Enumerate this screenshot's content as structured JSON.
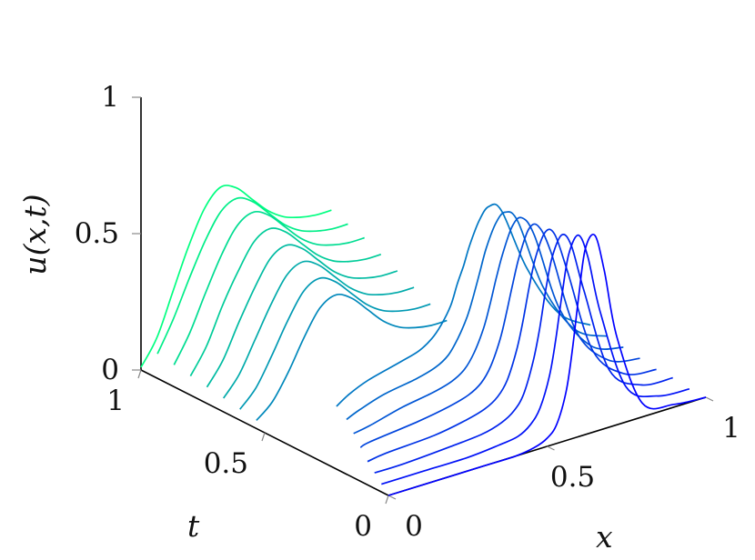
{
  "chart_data": {
    "type": "line",
    "projection": "3d",
    "xlabel": "x",
    "ylabel": "t",
    "zlabel": "u(x,t)",
    "xlim": [
      0,
      1
    ],
    "ylim": [
      0,
      1
    ],
    "zlim": [
      0,
      1
    ],
    "x_ticks": [
      "0",
      "0.5",
      "1"
    ],
    "y_ticks": [
      "0",
      "0.5",
      "1"
    ],
    "z_ticks": [
      "0",
      "0.5",
      "1"
    ],
    "grid": false,
    "colormap": "winter",
    "color_low": "#0000ff",
    "color_high": "#00ff80",
    "series": [
      {
        "t": 0.0,
        "x": [
          0,
          0.15,
          0.3,
          0.4,
          0.46,
          0.5,
          0.53,
          0.56,
          0.58,
          0.6,
          0.62,
          0.65,
          0.68,
          0.72,
          0.8,
          0.9,
          1.0
        ],
        "u": [
          0,
          0,
          0,
          0,
          0.01,
          0.03,
          0.07,
          0.18,
          0.33,
          0.52,
          0.68,
          0.72,
          0.58,
          0.32,
          0.05,
          0.01,
          0
        ]
      },
      {
        "t": 0.0667,
        "x": [
          0.03,
          0.15,
          0.3,
          0.4,
          0.46,
          0.5,
          0.53,
          0.56,
          0.58,
          0.6,
          0.62,
          0.65,
          0.68,
          0.72,
          0.8,
          0.9,
          1.0
        ],
        "u": [
          0,
          0,
          0,
          0.01,
          0.02,
          0.05,
          0.1,
          0.21,
          0.34,
          0.5,
          0.63,
          0.69,
          0.6,
          0.38,
          0.08,
          0.01,
          0
        ]
      },
      {
        "t": 0.1333,
        "x": [
          0.06,
          0.15,
          0.3,
          0.4,
          0.46,
          0.5,
          0.53,
          0.56,
          0.58,
          0.6,
          0.62,
          0.65,
          0.68,
          0.72,
          0.8,
          0.9,
          1.0
        ],
        "u": [
          0,
          0,
          0.01,
          0.02,
          0.04,
          0.07,
          0.12,
          0.23,
          0.34,
          0.48,
          0.59,
          0.66,
          0.61,
          0.43,
          0.11,
          0.02,
          0.01
        ]
      },
      {
        "t": 0.2,
        "x": [
          0.09,
          0.15,
          0.3,
          0.4,
          0.46,
          0.5,
          0.53,
          0.56,
          0.58,
          0.6,
          0.62,
          0.65,
          0.68,
          0.72,
          0.8,
          0.9,
          1.0
        ],
        "u": [
          0,
          0.01,
          0.02,
          0.04,
          0.06,
          0.09,
          0.14,
          0.24,
          0.34,
          0.46,
          0.56,
          0.64,
          0.62,
          0.47,
          0.15,
          0.03,
          0.01
        ]
      },
      {
        "t": 0.2667,
        "x": [
          0.12,
          0.15,
          0.3,
          0.4,
          0.46,
          0.5,
          0.53,
          0.56,
          0.58,
          0.6,
          0.62,
          0.65,
          0.68,
          0.72,
          0.8,
          0.9,
          1.0
        ],
        "u": [
          0.01,
          0.02,
          0.04,
          0.06,
          0.08,
          0.11,
          0.16,
          0.25,
          0.34,
          0.44,
          0.53,
          0.62,
          0.62,
          0.51,
          0.19,
          0.05,
          0.02
        ]
      },
      {
        "t": 0.3333,
        "x": [
          0.15,
          0.2,
          0.3,
          0.4,
          0.46,
          0.5,
          0.53,
          0.56,
          0.58,
          0.6,
          0.62,
          0.65,
          0.68,
          0.72,
          0.8,
          0.9,
          1.0
        ],
        "u": [
          0.02,
          0.03,
          0.06,
          0.08,
          0.1,
          0.13,
          0.18,
          0.26,
          0.34,
          0.43,
          0.51,
          0.6,
          0.62,
          0.54,
          0.24,
          0.07,
          0.03
        ]
      },
      {
        "t": 0.4,
        "x": [
          0.18,
          0.22,
          0.3,
          0.4,
          0.46,
          0.5,
          0.53,
          0.56,
          0.58,
          0.6,
          0.62,
          0.65,
          0.68,
          0.72,
          0.8,
          0.9,
          1.0
        ],
        "u": [
          0.03,
          0.05,
          0.08,
          0.1,
          0.12,
          0.15,
          0.2,
          0.27,
          0.34,
          0.42,
          0.5,
          0.58,
          0.61,
          0.56,
          0.29,
          0.1,
          0.04
        ]
      },
      {
        "t": 0.4667,
        "x": [
          0.2,
          0.24,
          0.3,
          0.4,
          0.46,
          0.5,
          0.53,
          0.56,
          0.58,
          0.6,
          0.62,
          0.65,
          0.68,
          0.72,
          0.8,
          0.9,
          1.0
        ],
        "u": [
          0.04,
          0.07,
          0.1,
          0.13,
          0.15,
          0.18,
          0.22,
          0.28,
          0.35,
          0.41,
          0.48,
          0.56,
          0.6,
          0.57,
          0.33,
          0.13,
          0.05
        ]
      },
      {
        "t": 0.5333,
        "x": [
          0.0,
          0.05,
          0.1,
          0.15,
          0.2,
          0.25,
          0.3,
          0.35,
          0.4,
          0.45,
          0.5,
          0.55,
          0.6
        ],
        "u": [
          0.03,
          0.08,
          0.17,
          0.28,
          0.37,
          0.4,
          0.37,
          0.31,
          0.25,
          0.21,
          0.19,
          0.18,
          0.18
        ]
      },
      {
        "t": 0.6,
        "x": [
          0.0,
          0.05,
          0.1,
          0.15,
          0.2,
          0.25,
          0.3,
          0.35,
          0.4,
          0.45,
          0.5,
          0.55,
          0.6
        ],
        "u": [
          0.04,
          0.1,
          0.2,
          0.31,
          0.4,
          0.43,
          0.4,
          0.34,
          0.28,
          0.24,
          0.22,
          0.21,
          0.21
        ]
      },
      {
        "t": 0.6667,
        "x": [
          0.0,
          0.05,
          0.1,
          0.15,
          0.2,
          0.25,
          0.3,
          0.35,
          0.4,
          0.45,
          0.5,
          0.55,
          0.6
        ],
        "u": [
          0.05,
          0.12,
          0.23,
          0.34,
          0.43,
          0.46,
          0.43,
          0.37,
          0.31,
          0.27,
          0.25,
          0.24,
          0.24
        ]
      },
      {
        "t": 0.7333,
        "x": [
          0.0,
          0.05,
          0.1,
          0.15,
          0.2,
          0.25,
          0.3,
          0.35,
          0.4,
          0.45,
          0.5,
          0.55,
          0.6
        ],
        "u": [
          0.06,
          0.14,
          0.26,
          0.37,
          0.46,
          0.49,
          0.46,
          0.4,
          0.34,
          0.3,
          0.28,
          0.27,
          0.27
        ]
      },
      {
        "t": 0.8,
        "x": [
          0.0,
          0.05,
          0.1,
          0.15,
          0.2,
          0.25,
          0.3,
          0.35,
          0.4,
          0.45,
          0.5,
          0.55,
          0.6
        ],
        "u": [
          0.07,
          0.16,
          0.29,
          0.4,
          0.49,
          0.52,
          0.49,
          0.43,
          0.37,
          0.33,
          0.31,
          0.3,
          0.3
        ]
      },
      {
        "t": 0.8667,
        "x": [
          0.0,
          0.05,
          0.1,
          0.15,
          0.2,
          0.25,
          0.3,
          0.35,
          0.4,
          0.45,
          0.5,
          0.55,
          0.6
        ],
        "u": [
          0.08,
          0.18,
          0.31,
          0.43,
          0.52,
          0.55,
          0.52,
          0.46,
          0.4,
          0.36,
          0.34,
          0.33,
          0.33
        ]
      },
      {
        "t": 0.9333,
        "x": [
          0.0,
          0.05,
          0.1,
          0.15,
          0.2,
          0.25,
          0.3,
          0.35,
          0.4,
          0.45,
          0.5,
          0.55,
          0.6
        ],
        "u": [
          0.09,
          0.2,
          0.33,
          0.45,
          0.54,
          0.57,
          0.54,
          0.48,
          0.42,
          0.38,
          0.36,
          0.35,
          0.35
        ]
      },
      {
        "t": 1.0,
        "x": [
          0.0,
          0.05,
          0.1,
          0.15,
          0.2,
          0.25,
          0.3,
          0.35,
          0.4,
          0.45,
          0.5,
          0.55,
          0.6
        ],
        "u": [
          0.01,
          0.1,
          0.25,
          0.4,
          0.52,
          0.58,
          0.56,
          0.5,
          0.44,
          0.4,
          0.38,
          0.37,
          0.37
        ]
      }
    ]
  }
}
